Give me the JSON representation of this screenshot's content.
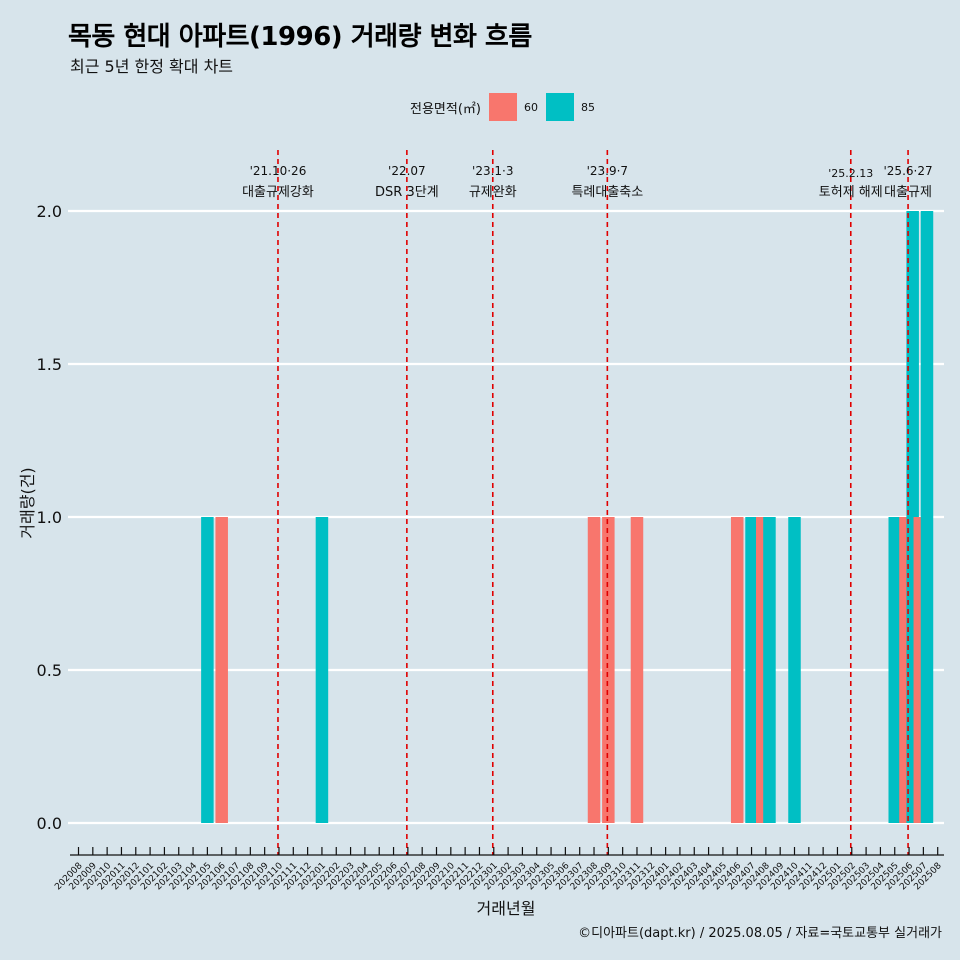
{
  "title": "목동 현대 아파트(1996) 거래량 변화 흐름",
  "subtitle": "최근 5년 한정 확대 차트",
  "caption": "©디아파트(dapt.kr) / 2025.08.05 / 자료=국토교통부 실거래가",
  "legend": {
    "title": "전용면적(㎡)",
    "items": [
      {
        "label": "60",
        "color": "#f8766d"
      },
      {
        "label": "85",
        "color": "#00bfc4"
      }
    ]
  },
  "chart_data": {
    "type": "bar",
    "xlabel": "거래년월",
    "ylabel": "거래량(건)",
    "ylim": [
      0,
      2
    ],
    "yticks": [
      "0.0",
      "0.5",
      "1.0",
      "1.5",
      "2.0"
    ],
    "grid": "horizontal",
    "legend_position": "top",
    "categories": [
      "202008",
      "202009",
      "202010",
      "202011",
      "202012",
      "202101",
      "202102",
      "202103",
      "202104",
      "202105",
      "202106",
      "202107",
      "202108",
      "202109",
      "202110",
      "202111",
      "202112",
      "202201",
      "202202",
      "202203",
      "202204",
      "202205",
      "202206",
      "202207",
      "202208",
      "202209",
      "202210",
      "202211",
      "202212",
      "202301",
      "202302",
      "202303",
      "202304",
      "202305",
      "202306",
      "202307",
      "202308",
      "202309",
      "202310",
      "202311",
      "202312",
      "202401",
      "202402",
      "202403",
      "202404",
      "202405",
      "202406",
      "202407",
      "202408",
      "202409",
      "202410",
      "202411",
      "202412",
      "202501",
      "202502",
      "202503",
      "202504",
      "202505",
      "202506",
      "202507",
      "202508"
    ],
    "bars": [
      {
        "x": "202105",
        "series": "85",
        "value": 1
      },
      {
        "x": "202106",
        "series": "60",
        "value": 1
      },
      {
        "x": "202201",
        "series": "85",
        "value": 1
      },
      {
        "x": "202308",
        "series": "60",
        "value": 1
      },
      {
        "x": "202309",
        "series": "60",
        "value": 1
      },
      {
        "x": "202311",
        "series": "60",
        "value": 1
      },
      {
        "x": "202406",
        "series": "60",
        "value": 1
      },
      {
        "x": "202407",
        "series": "85",
        "value": 1
      },
      {
        "x": "202408",
        "series": "60",
        "value": 1
      },
      {
        "x": "202408",
        "series": "85",
        "value": 1
      },
      {
        "x": "202410",
        "series": "85",
        "value": 1
      },
      {
        "x": "202505",
        "series": "85",
        "value": 1
      },
      {
        "x": "202506",
        "series": "60",
        "value": 1
      },
      {
        "x": "202506",
        "series": "85",
        "value": 2
      },
      {
        "x": "202507",
        "series": "60",
        "value": 1
      },
      {
        "x": "202507",
        "series": "85",
        "value": 2
      }
    ],
    "events": [
      {
        "x": "202110",
        "date": "'21.10·26",
        "label": "대출규제강화"
      },
      {
        "x": "202207",
        "date": "'22.07",
        "label": "DSR 3단계"
      },
      {
        "x": "202301",
        "date": "'23.1·3",
        "label": "규제완화"
      },
      {
        "x": "202309",
        "date": "'23.9·7",
        "label": "특례대출축소"
      },
      {
        "x": "202502",
        "date": "'25.2.13",
        "label": "토허제 해제"
      },
      {
        "x": "202506",
        "date": "'25.6·27",
        "label": "대출규제"
      }
    ]
  }
}
